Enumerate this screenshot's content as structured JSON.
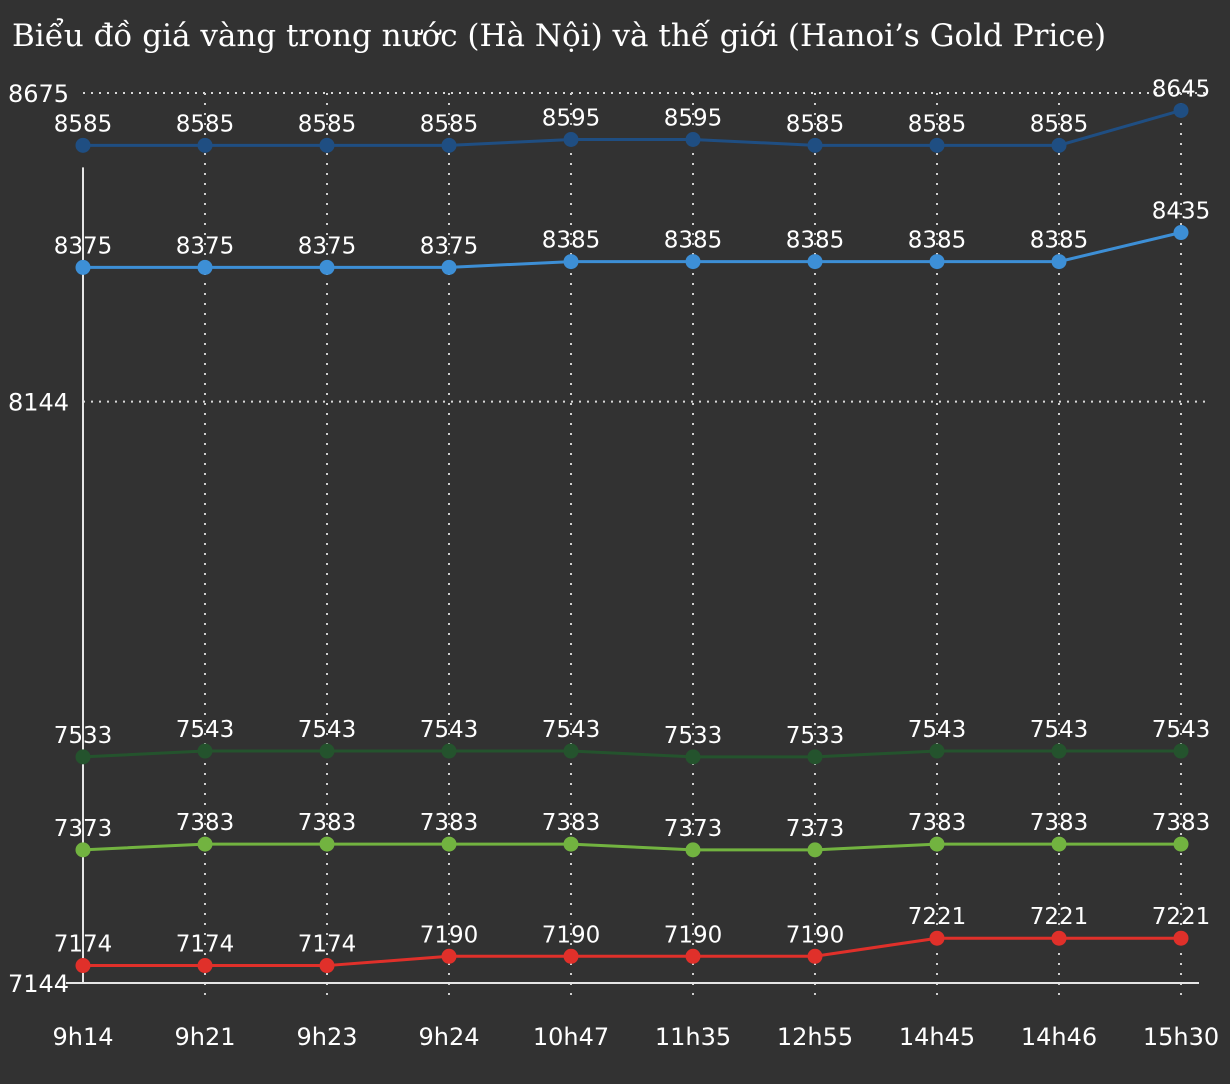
{
  "chart_data": {
    "type": "line",
    "title": "Biểu đồ giá vàng trong nước (Hà Nội) và thế giới (Hanoi’s Gold Price)",
    "categories": [
      "9h14",
      "9h21",
      "9h23",
      "9h24",
      "10h47",
      "11h35",
      "12h55",
      "14h45",
      "14h46",
      "15h30"
    ],
    "yticks": [
      7144,
      8144,
      8675
    ],
    "ylim": [
      7144,
      8675
    ],
    "grid": true,
    "series": [
      {
        "color": "#1f4e82",
        "values": [
          8585,
          8585,
          8585,
          8585,
          8595,
          8595,
          8585,
          8585,
          8585,
          8645
        ]
      },
      {
        "color": "#3d8fd6",
        "values": [
          8375,
          8375,
          8375,
          8375,
          8385,
          8385,
          8385,
          8385,
          8385,
          8435
        ]
      },
      {
        "color": "#24532d",
        "values": [
          7533,
          7543,
          7543,
          7543,
          7543,
          7533,
          7533,
          7543,
          7543,
          7543
        ]
      },
      {
        "color": "#72b340",
        "values": [
          7373,
          7383,
          7383,
          7383,
          7383,
          7373,
          7373,
          7383,
          7383,
          7383
        ]
      },
      {
        "color": "#e0302a",
        "values": [
          7174,
          7174,
          7174,
          7190,
          7190,
          7190,
          7190,
          7221,
          7221,
          7221
        ]
      }
    ]
  }
}
